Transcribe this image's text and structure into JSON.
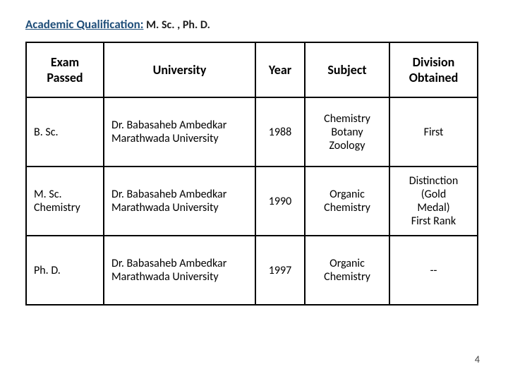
{
  "heading": {
    "title": "Academic Qualification:",
    "suffix": " M. Sc. , Ph. D."
  },
  "table": {
    "columns": [
      "Exam\nPassed",
      "University",
      "Year",
      "Subject",
      "Division\nObtained"
    ],
    "rows": [
      {
        "exam": "B. Sc.",
        "university": "Dr. Babasaheb Ambedkar Marathwada University",
        "year": "1988",
        "subject": "Chemistry\nBotany\nZoology",
        "division": "First"
      },
      {
        "exam": "M. Sc.\nChemistry",
        "university": "Dr. Babasaheb Ambedkar Marathwada University",
        "year": "1990",
        "subject": "Organic\nChemistry",
        "division": "Distinction\n(Gold\nMedal)\nFirst Rank"
      },
      {
        "exam": "Ph. D.",
        "university": "Dr. Babasaheb Ambedkar Marathwada University",
        "year": "1997",
        "subject": "Organic\nChemistry",
        "division": "--"
      }
    ]
  },
  "page_number": "4",
  "colors": {
    "heading": "#1f4e79",
    "text": "#000000",
    "border": "#000000",
    "background": "#ffffff"
  },
  "fontsize": {
    "heading": 17,
    "header_cell": 18,
    "body_cell": 16,
    "page_num": 14
  }
}
